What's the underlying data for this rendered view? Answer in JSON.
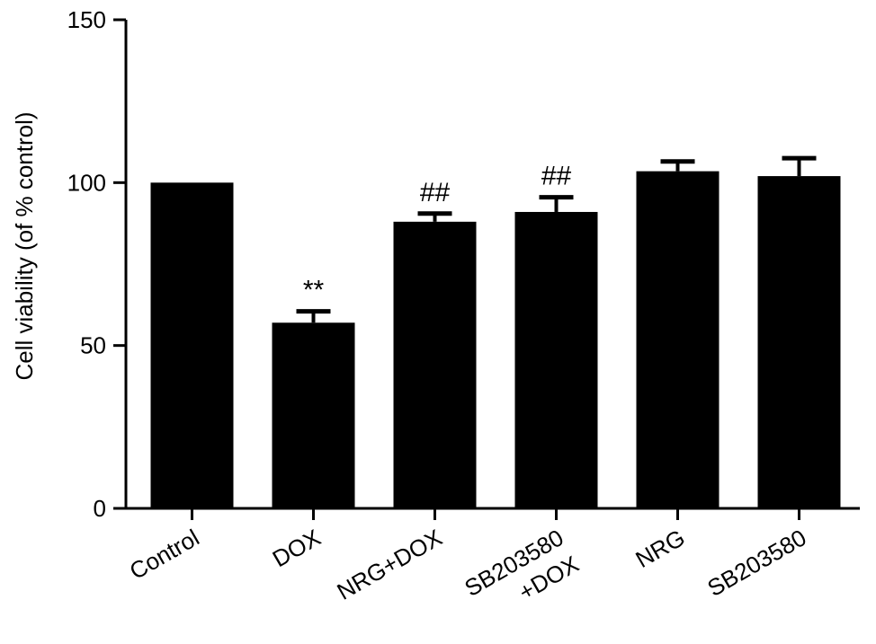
{
  "chart_data": {
    "type": "bar",
    "title": "",
    "xlabel": "",
    "ylabel": "Cell viability (of % control)",
    "ylim": [
      0,
      150
    ],
    "yticks": [
      0,
      50,
      100,
      150
    ],
    "grid": false,
    "categories": [
      [
        "Control"
      ],
      [
        "DOX"
      ],
      [
        "NRG+DOX"
      ],
      [
        "SB203580",
        "+DOX"
      ],
      [
        "NRG"
      ],
      [
        "SB203580"
      ]
    ],
    "values": [
      100,
      57,
      88,
      91,
      103.5,
      102
    ],
    "error_upper": [
      0,
      3.5,
      2.5,
      4.5,
      3,
      5.5
    ],
    "annotations": [
      "",
      "**",
      "##",
      "##",
      "",
      ""
    ],
    "bar_color": "#000000"
  }
}
